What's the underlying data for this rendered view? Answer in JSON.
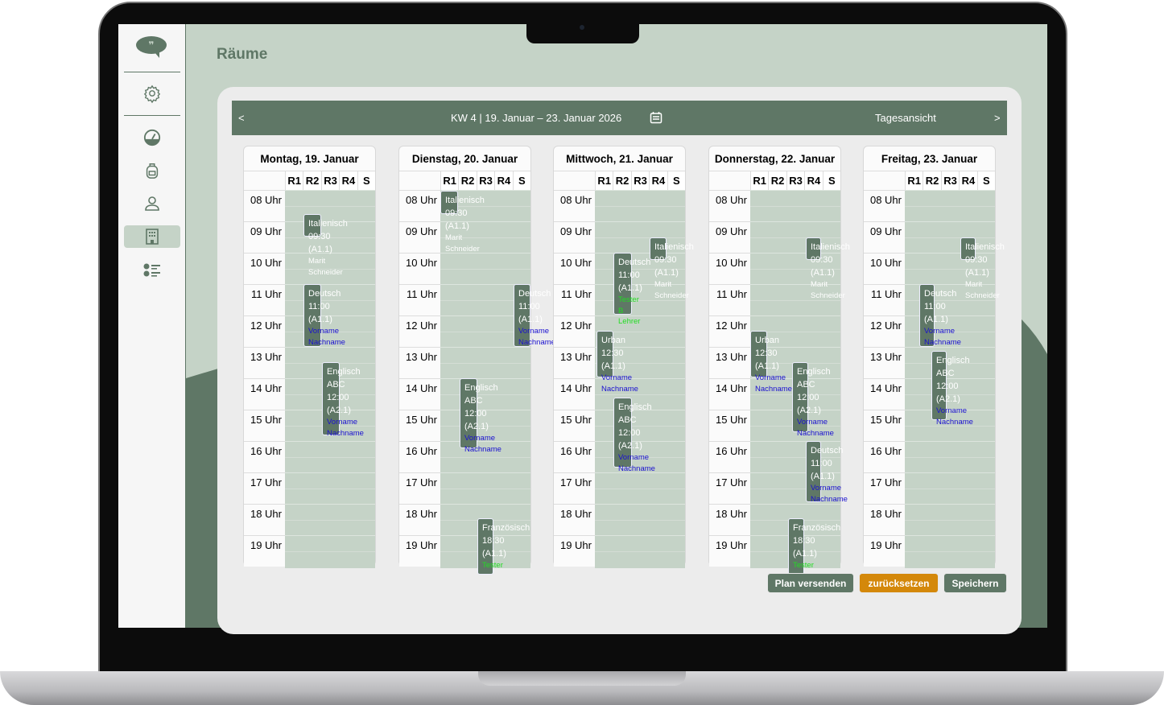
{
  "app": {
    "page_title": "Räume",
    "logo": "speech-bubble-logo"
  },
  "sidebar": {
    "items": [
      {
        "icon": "gear-icon",
        "label": "Einstellungen"
      },
      {
        "icon": "dashboard-gauge-icon"
      },
      {
        "icon": "backpack-icon"
      },
      {
        "icon": "person-icon"
      },
      {
        "icon": "building-icon",
        "active": true
      },
      {
        "icon": "checklist-icon"
      }
    ]
  },
  "nav": {
    "prev": "<",
    "next": ">",
    "week": "KW 4 | 19. Januar – 23. Januar 2026",
    "calendar_icon": "calendar-icon",
    "view": "Tagesansicht"
  },
  "rooms": [
    "R1",
    "R2",
    "R3",
    "R4",
    "S"
  ],
  "hours": [
    "08 Uhr",
    "09 Uhr",
    "10 Uhr",
    "11 Uhr",
    "12 Uhr",
    "13 Uhr",
    "14 Uhr",
    "15 Uhr",
    "16 Uhr",
    "17 Uhr",
    "18 Uhr",
    "19 Uhr"
  ],
  "days": [
    {
      "title": "Montag, 19. Januar",
      "events": [
        {
          "lines": [
            "Italienisch",
            "09:30",
            "(A1.1)"
          ],
          "people": [
            "Marit",
            "Schneider"
          ],
          "people_color": "#ffffff",
          "room": "R2"
        },
        {
          "lines": [
            "Deutsch",
            "11:00",
            "(A1.1)"
          ],
          "people": [
            "Vorname",
            "Nachname"
          ],
          "people_color": "#1a10d0",
          "room": "R2"
        },
        {
          "lines": [
            "Englisch",
            "ABC",
            "12:00",
            "(A2.1)"
          ],
          "people": [
            "Vorname",
            "Nachname"
          ],
          "people_color": "#1a10d0",
          "room": "R3"
        }
      ]
    },
    {
      "title": "Dienstag, 20. Januar",
      "events": [
        {
          "lines": [
            "Italienisch",
            "09:30",
            "(A1.1)"
          ],
          "people": [
            "Marit",
            "Schneider"
          ],
          "people_color": "#ffffff",
          "room": "R1"
        },
        {
          "lines": [
            "Deutsch",
            "11:00",
            "(A1.1)"
          ],
          "people": [
            "Vorname",
            "Nachname"
          ],
          "people_color": "#1a10d0",
          "room": "S"
        },
        {
          "lines": [
            "Englisch",
            "ABC",
            "12:00",
            "(A2.1)"
          ],
          "people": [
            "Vorname",
            "Nachname"
          ],
          "people_color": "#1a10d0",
          "room": "R2"
        },
        {
          "lines": [
            "Französisch",
            "18:30",
            "(A1.1)"
          ],
          "people": [
            "Tester"
          ],
          "people_color": "#22dd22",
          "room": "R3"
        }
      ]
    },
    {
      "title": "Mittwoch, 21. Januar",
      "events": [
        {
          "lines": [
            "Italienisch",
            "09:30",
            "(A1.1)"
          ],
          "people": [
            "Marit",
            "Schneider"
          ],
          "people_color": "#ffffff",
          "room": "R4"
        },
        {
          "lines": [
            "Deutsch",
            "11:00",
            "(A1.1)"
          ],
          "people": [
            "Tester",
            "B",
            "Lehrer"
          ],
          "people_color": "#22dd22",
          "room": "R2"
        },
        {
          "lines": [
            "Urban",
            "12:30",
            "(A1.1)"
          ],
          "people": [
            "Vorname",
            "Nachname"
          ],
          "people_color": "#1a10d0",
          "room": "R1"
        },
        {
          "lines": [
            "Englisch",
            "ABC",
            "12:00",
            "(A2.1)"
          ],
          "people": [
            "Vorname",
            "Nachname"
          ],
          "people_color": "#1a10d0",
          "room": "R2"
        }
      ]
    },
    {
      "title": "Donnerstag, 22. Januar",
      "events": [
        {
          "lines": [
            "Italienisch",
            "09:30",
            "(A1.1)"
          ],
          "people": [
            "Marit",
            "Schneider"
          ],
          "people_color": "#ffffff",
          "room": "R4"
        },
        {
          "lines": [
            "Urban",
            "12:30",
            "(A1.1)"
          ],
          "people": [
            "Vorname",
            "Nachname"
          ],
          "people_color": "#1a10d0",
          "room": "R1"
        },
        {
          "lines": [
            "Englisch",
            "ABC",
            "12:00",
            "(A2.1)"
          ],
          "people": [
            "Vorname",
            "Nachname"
          ],
          "people_color": "#1a10d0",
          "room": "R3"
        },
        {
          "lines": [
            "Deutsch",
            "11:00",
            "(A1.1)"
          ],
          "people": [
            "Vorname",
            "Nachname"
          ],
          "people_color": "#1a10d0",
          "room": "R4"
        },
        {
          "lines": [
            "Französisch",
            "18:30",
            "(A1.1)"
          ],
          "people": [
            "Tester"
          ],
          "people_color": "#22dd22",
          "room": "R3"
        }
      ]
    },
    {
      "title": "Freitag, 23. Januar",
      "events": [
        {
          "lines": [
            "Italienisch",
            "09:30",
            "(A1.1)"
          ],
          "people": [
            "Marit",
            "Schneider"
          ],
          "people_color": "#ffffff",
          "room": "R4"
        },
        {
          "lines": [
            "Deutsch",
            "11:00",
            "(A1.1)"
          ],
          "people": [
            "Vorname",
            "Nachname"
          ],
          "people_color": "#1a10d0",
          "room": "R2"
        },
        {
          "lines": [
            "Englisch",
            "ABC",
            "12:00",
            "(A2.1)"
          ],
          "people": [
            "Vorname",
            "Nachname"
          ],
          "people_color": "#1a10d0",
          "room": "R2"
        }
      ]
    }
  ],
  "actions": {
    "send": "Plan versenden",
    "reset": "zurücksetzen",
    "save": "Speichern"
  },
  "colors": {
    "primary": "#5f7766",
    "light": "#c5d3c7",
    "reset": "#d4880a"
  }
}
